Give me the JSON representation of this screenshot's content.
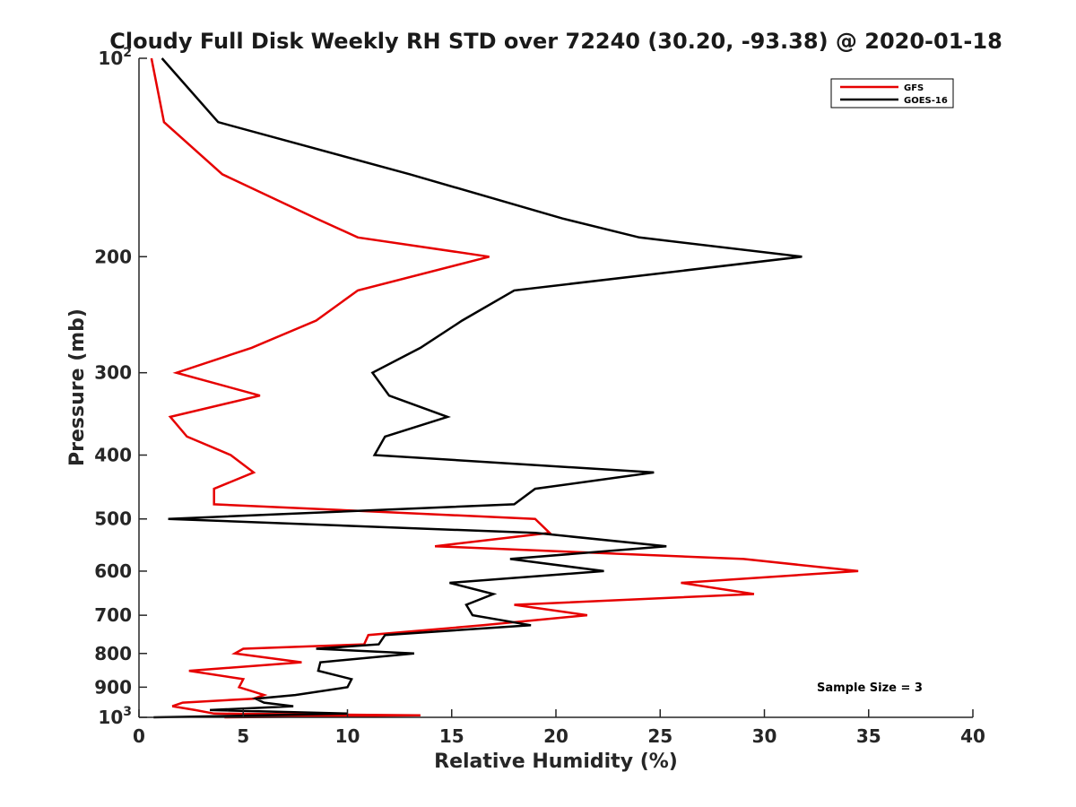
{
  "chart_data": {
    "type": "line",
    "title": "Cloudy Full Disk Weekly RH STD over 72240 (30.20, -93.38) @ 2020-01-18",
    "xlabel": "Relative Humidity (%)",
    "ylabel": "Pressure (mb)",
    "xlim": [
      0,
      40
    ],
    "ylim": [
      100,
      1000
    ],
    "yscale": "log",
    "y_reversed": true,
    "x_ticks": [
      0,
      5,
      10,
      15,
      20,
      25,
      30,
      35,
      40
    ],
    "x_tick_labels": [
      "0",
      "5",
      "10",
      "15",
      "20",
      "25",
      "30",
      "35",
      "40"
    ],
    "y_ticks": [
      100,
      200,
      300,
      400,
      500,
      600,
      700,
      800,
      900,
      1000
    ],
    "y_tick_labels": [
      {
        "base": "10",
        "exp": "2"
      },
      {
        "base": "200",
        "exp": ""
      },
      {
        "base": "300",
        "exp": ""
      },
      {
        "base": "400",
        "exp": ""
      },
      {
        "base": "500",
        "exp": ""
      },
      {
        "base": "600",
        "exp": ""
      },
      {
        "base": "700",
        "exp": ""
      },
      {
        "base": "800",
        "exp": ""
      },
      {
        "base": "900",
        "exp": ""
      },
      {
        "base": "10",
        "exp": "3"
      }
    ],
    "legend_position": "top-right",
    "annotation": "Sample Size = 3",
    "series": [
      {
        "name": "GFS",
        "color": "#e60000",
        "points": [
          [
            0.6,
            100
          ],
          [
            1.2,
            125
          ],
          [
            4.0,
            150
          ],
          [
            8.5,
            175
          ],
          [
            10.5,
            187
          ],
          [
            16.8,
            200
          ],
          [
            10.5,
            225
          ],
          [
            8.5,
            250
          ],
          [
            5.4,
            275
          ],
          [
            1.8,
            300
          ],
          [
            5.8,
            325
          ],
          [
            1.5,
            350
          ],
          [
            2.3,
            375
          ],
          [
            4.4,
            400
          ],
          [
            5.5,
            425
          ],
          [
            3.6,
            450
          ],
          [
            3.6,
            475
          ],
          [
            19.0,
            500
          ],
          [
            19.7,
            525
          ],
          [
            14.2,
            550
          ],
          [
            29.0,
            575
          ],
          [
            34.5,
            600
          ],
          [
            26.0,
            625
          ],
          [
            29.5,
            650
          ],
          [
            18.0,
            675
          ],
          [
            21.5,
            700
          ],
          [
            16.5,
            725
          ],
          [
            11.0,
            750
          ],
          [
            10.8,
            775
          ],
          [
            5.0,
            787
          ],
          [
            4.6,
            800
          ],
          [
            7.8,
            825
          ],
          [
            2.4,
            850
          ],
          [
            5.0,
            875
          ],
          [
            4.8,
            900
          ],
          [
            6.0,
            925
          ],
          [
            5.5,
            937
          ],
          [
            2.1,
            950
          ],
          [
            1.6,
            962
          ],
          [
            2.7,
            975
          ],
          [
            3.6,
            987
          ],
          [
            13.5,
            993
          ],
          [
            4.1,
            1000
          ]
        ]
      },
      {
        "name": "GOES-16",
        "color": "#000000",
        "points": [
          [
            1.1,
            100
          ],
          [
            3.8,
            125
          ],
          [
            13.0,
            150
          ],
          [
            20.3,
            175
          ],
          [
            24.0,
            187
          ],
          [
            31.8,
            200
          ],
          [
            18.0,
            225
          ],
          [
            15.5,
            250
          ],
          [
            13.5,
            275
          ],
          [
            11.2,
            300
          ],
          [
            12.0,
            325
          ],
          [
            14.8,
            350
          ],
          [
            11.8,
            375
          ],
          [
            11.3,
            400
          ],
          [
            24.7,
            425
          ],
          [
            19.0,
            450
          ],
          [
            18.0,
            475
          ],
          [
            1.4,
            500
          ],
          [
            19.0,
            525
          ],
          [
            25.3,
            550
          ],
          [
            17.8,
            575
          ],
          [
            22.3,
            600
          ],
          [
            14.9,
            625
          ],
          [
            17.0,
            650
          ],
          [
            15.7,
            675
          ],
          [
            16.0,
            700
          ],
          [
            18.8,
            725
          ],
          [
            11.8,
            750
          ],
          [
            11.5,
            775
          ],
          [
            8.5,
            787
          ],
          [
            13.2,
            800
          ],
          [
            8.7,
            825
          ],
          [
            8.6,
            850
          ],
          [
            10.2,
            875
          ],
          [
            10.0,
            900
          ],
          [
            7.5,
            925
          ],
          [
            5.6,
            937
          ],
          [
            6.0,
            950
          ],
          [
            7.4,
            962
          ],
          [
            3.4,
            975
          ],
          [
            10.0,
            987
          ],
          [
            6.0,
            993
          ],
          [
            0.7,
            1000
          ]
        ]
      }
    ]
  }
}
